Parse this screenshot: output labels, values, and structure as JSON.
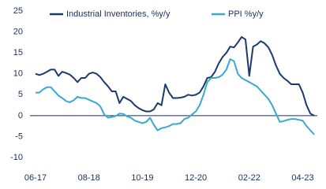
{
  "chart_data": {
    "type": "line",
    "categories": [
      "06-17",
      null,
      null,
      null,
      null,
      null,
      null,
      null,
      null,
      null,
      null,
      null,
      null,
      null,
      "08-18",
      null,
      null,
      null,
      null,
      null,
      null,
      null,
      null,
      null,
      null,
      null,
      null,
      null,
      "10-19",
      null,
      null,
      null,
      null,
      null,
      null,
      null,
      null,
      null,
      null,
      null,
      null,
      null,
      "12-20",
      null,
      null,
      null,
      null,
      null,
      null,
      null,
      null,
      null,
      null,
      null,
      null,
      null,
      "02-22",
      null,
      null,
      null,
      null,
      null,
      null,
      null,
      null,
      null,
      null,
      null,
      null,
      null,
      "04-23",
      null,
      null,
      null
    ],
    "series": [
      {
        "name": "Industrial Inventories, %y/y",
        "color": "#1b3a6b",
        "values": [
          10,
          9.7,
          10,
          10.5,
          11,
          11,
          9.5,
          10.5,
          10.2,
          9.8,
          9,
          8,
          9,
          9,
          10,
          10.3,
          10,
          9.2,
          8,
          7,
          5.8,
          5.8,
          3,
          4.5,
          4,
          3.5,
          2.5,
          1.8,
          1.3,
          1,
          1,
          1.5,
          3,
          2.5,
          7.5,
          5.5,
          4.2,
          4.2,
          4.3,
          4.5,
          5,
          4.8,
          5,
          5.5,
          7,
          9,
          9.2,
          10.5,
          12.5,
          14,
          15,
          16.5,
          16.3,
          17.5,
          18.8,
          18.2,
          9.5,
          16.5,
          17,
          17.8,
          17.3,
          16.3,
          14.5,
          12,
          10,
          9,
          8.3,
          7.5,
          7.5,
          7.5,
          5.5,
          2.5,
          0.5,
          0
        ]
      },
      {
        "name": "PPI %y/y",
        "color": "#3aa8d0",
        "values": [
          5.5,
          5.5,
          6.3,
          6.8,
          6.8,
          5.8,
          4.8,
          4.2,
          3.5,
          3.2,
          3.7,
          4.5,
          4.2,
          4.2,
          3.8,
          3.4,
          3,
          2.2,
          0.3,
          -0.5,
          -0.3,
          -0.1,
          0.5,
          0.4,
          -0.2,
          -0.5,
          -1.2,
          -1.5,
          -1.8,
          -1.5,
          -0.5,
          -2.2,
          -3.5,
          -3,
          -2.8,
          -2.5,
          -2,
          -2,
          -1.8,
          -0.8,
          -0.5,
          0.3,
          1,
          2.5,
          5,
          8,
          9,
          9,
          9.2,
          9.8,
          11,
          13.5,
          13,
          10,
          9,
          8.5,
          8,
          7.5,
          7,
          6,
          5,
          4,
          2.5,
          0.5,
          -1.5,
          -1.3,
          -1,
          -0.8,
          -0.8,
          -1,
          -1.2,
          -2.5,
          -3.5,
          -4.5
        ]
      }
    ],
    "ylim": [
      -10,
      25
    ],
    "yticks": [
      -10,
      -5,
      0,
      5,
      10,
      15,
      20,
      25
    ],
    "zero_line": true,
    "legend": "top",
    "grid": false
  }
}
